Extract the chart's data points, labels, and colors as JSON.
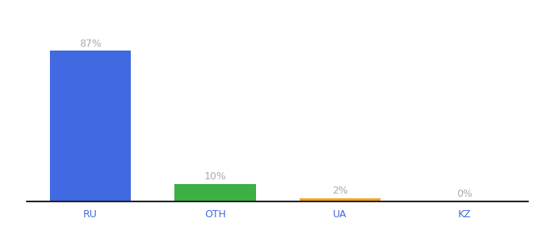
{
  "categories": [
    "RU",
    "OTH",
    "UA",
    "KZ"
  ],
  "values": [
    87,
    10,
    2,
    0
  ],
  "bar_colors": [
    "#4169e1",
    "#3cb043",
    "#f5a623",
    "#4169e1"
  ],
  "labels": [
    "87%",
    "10%",
    "2%",
    "0%"
  ],
  "ylim": [
    0,
    100
  ],
  "label_color": "#aaaaaa",
  "tick_color": "#4169e1",
  "background_color": "#ffffff",
  "bar_width": 0.65
}
